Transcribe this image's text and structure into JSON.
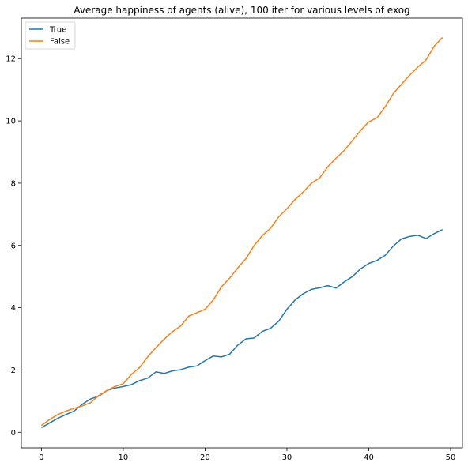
{
  "chart_data": {
    "type": "line",
    "title": "Average happiness of agents (alive), 100 iter for various levels of exog",
    "xlabel": "",
    "ylabel": "",
    "xlim": [
      -2.45,
      51.45
    ],
    "ylim": [
      -0.5,
      13.3
    ],
    "xticks": [
      0,
      10,
      20,
      30,
      40,
      50
    ],
    "yticks": [
      0,
      2,
      4,
      6,
      8,
      10,
      12
    ],
    "grid": false,
    "legend": {
      "position": "top-left",
      "entries": [
        "True",
        "False"
      ]
    },
    "series": [
      {
        "name": "True",
        "color": "#1f77b4",
        "x": [
          0,
          1,
          2,
          3,
          4,
          5,
          6,
          7,
          8,
          9,
          10,
          11,
          12,
          13,
          14,
          15,
          16,
          17,
          18,
          19,
          20,
          21,
          22,
          23,
          24,
          25,
          26,
          27,
          28,
          29,
          30,
          31,
          32,
          33,
          34,
          35,
          36,
          37,
          38,
          39,
          40,
          41,
          42,
          43,
          44,
          45,
          46,
          47,
          48,
          49
        ],
        "values": [
          0.15,
          0.3,
          0.45,
          0.57,
          0.68,
          0.9,
          1.07,
          1.16,
          1.34,
          1.42,
          1.47,
          1.53,
          1.66,
          1.74,
          1.94,
          1.89,
          1.97,
          2.01,
          2.09,
          2.13,
          2.3,
          2.45,
          2.42,
          2.51,
          2.8,
          3.0,
          3.03,
          3.24,
          3.34,
          3.57,
          3.95,
          4.25,
          4.45,
          4.59,
          4.64,
          4.71,
          4.63,
          4.83,
          5.0,
          5.25,
          5.42,
          5.52,
          5.68,
          5.98,
          6.21,
          6.29,
          6.33,
          6.22,
          6.38,
          6.51
        ]
      },
      {
        "name": "False",
        "color": "#ff7f0e",
        "x": [
          0,
          1,
          2,
          3,
          4,
          5,
          6,
          7,
          8,
          9,
          10,
          11,
          12,
          13,
          14,
          15,
          16,
          17,
          18,
          19,
          20,
          21,
          22,
          23,
          24,
          25,
          26,
          27,
          28,
          29,
          30,
          31,
          32,
          33,
          34,
          35,
          36,
          37,
          38,
          39,
          40,
          41,
          42,
          43,
          44,
          45,
          46,
          47,
          48,
          49
        ],
        "values": [
          0.22,
          0.41,
          0.57,
          0.68,
          0.77,
          0.85,
          0.95,
          1.18,
          1.34,
          1.47,
          1.56,
          1.86,
          2.08,
          2.43,
          2.72,
          2.99,
          3.23,
          3.41,
          3.73,
          3.84,
          3.95,
          4.25,
          4.67,
          4.95,
          5.28,
          5.58,
          6.0,
          6.32,
          6.55,
          6.92,
          7.18,
          7.48,
          7.72,
          8.0,
          8.17,
          8.53,
          8.8,
          9.05,
          9.37,
          9.69,
          9.97,
          10.1,
          10.45,
          10.88,
          11.18,
          11.47,
          11.73,
          11.96,
          12.4,
          12.68
        ]
      }
    ]
  }
}
